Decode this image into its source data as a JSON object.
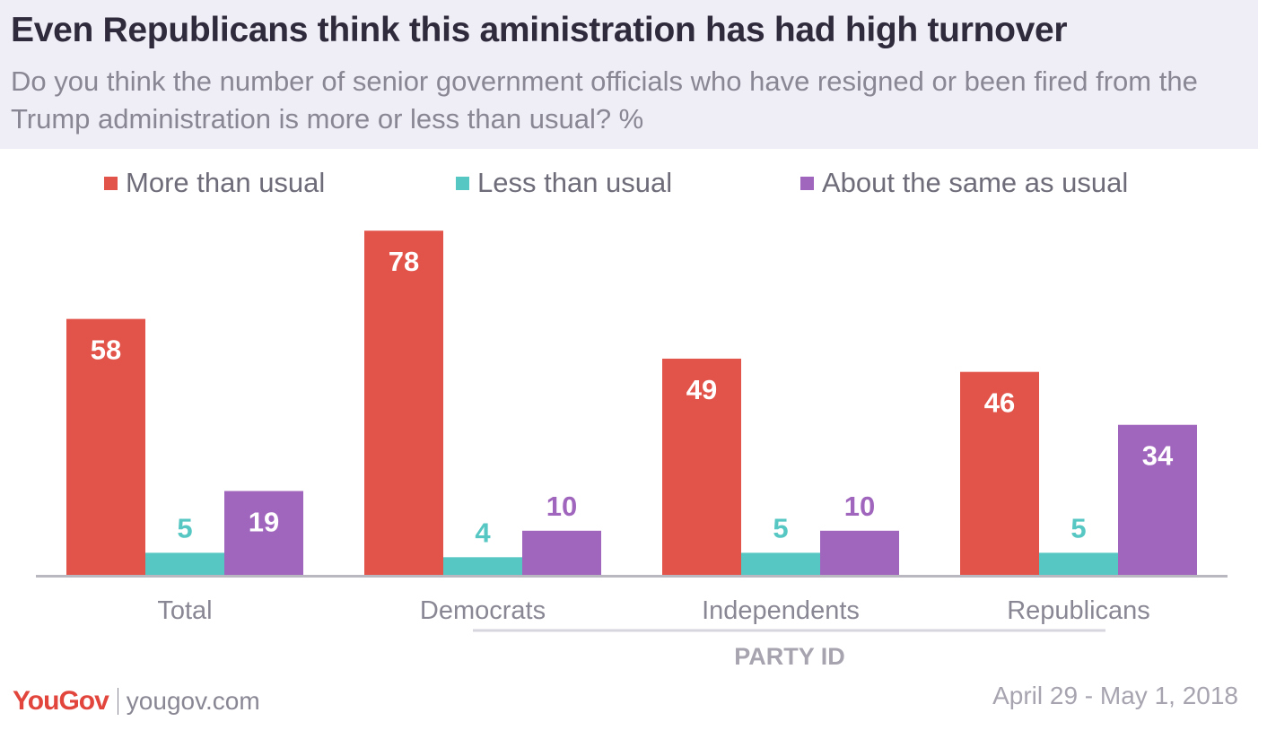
{
  "header": {
    "title": "Even Republicans think this aministration has had high turnover",
    "subtitle": "Do you think the number of senior government officials who have resigned or been fired from the Trump administration is more or less than usual? %"
  },
  "footer": {
    "brand_you": "You",
    "brand_gov": "Gov",
    "site": "yougov.com",
    "date": "April 29 - May 1, 2018"
  },
  "colors": {
    "more": "#e2534a",
    "less": "#56c7c3",
    "same": "#a066bd",
    "brand": "#e2453c"
  },
  "chart_data": {
    "type": "bar",
    "title": "Even Republicans think this aministration has had high turnover",
    "categories": [
      "Total",
      "Democrats",
      "Independents",
      "Republicans"
    ],
    "series": [
      {
        "name": "More than usual",
        "values": [
          58,
          78,
          49,
          46
        ]
      },
      {
        "name": "Less than usual",
        "values": [
          5,
          4,
          5,
          5
        ]
      },
      {
        "name": "About the same as usual",
        "values": [
          19,
          10,
          10,
          34
        ]
      }
    ],
    "group_label": "PARTY ID",
    "grouped_categories": [
      "Democrats",
      "Independents",
      "Republicans"
    ],
    "ylim": [
      0,
      80
    ],
    "grid": false,
    "legend": "top",
    "data_labels": true,
    "xlabel": "",
    "ylabel": ""
  }
}
